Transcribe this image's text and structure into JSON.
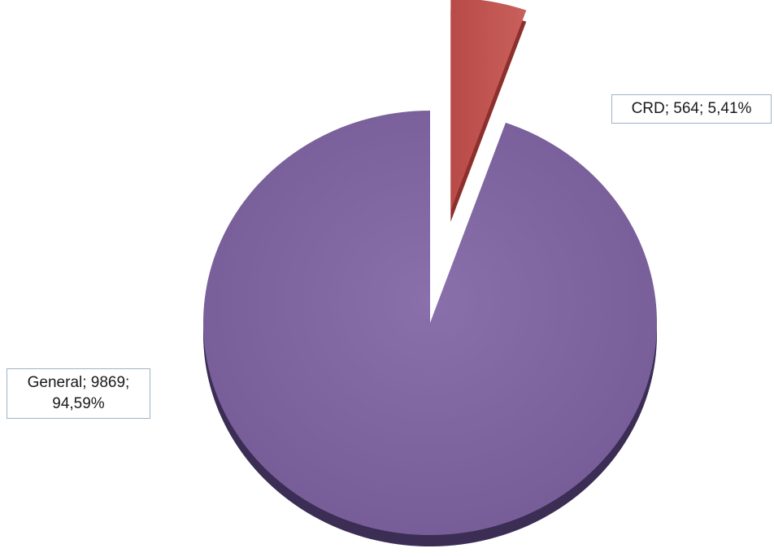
{
  "chart_data": {
    "type": "pie",
    "variant": "3d-exploded",
    "title": "",
    "slices": [
      {
        "category": "General",
        "value": 9869,
        "percent": "94,59%",
        "color": "#8066a0",
        "edge_color": "#3b2d54",
        "label": {
          "line1": "General; 9869;",
          "line2": "94,59%"
        }
      },
      {
        "category": "CRD",
        "value": 564,
        "percent": "5,41%",
        "color": "#c0504d",
        "edge_color": "#8c2f2d",
        "label": {
          "line1": "CRD; 564; 5,41%",
          "line2": ""
        }
      }
    ],
    "exploded_slice": "CRD",
    "legend": "none",
    "label_border_color": "#9db3c9"
  }
}
